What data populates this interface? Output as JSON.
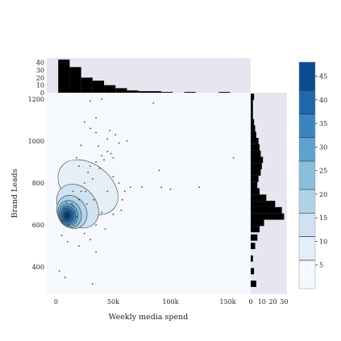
{
  "chart_data": {
    "type": "jointplot",
    "xlabel": "Weekly media spend",
    "ylabel": "Brand Leads",
    "x_ticks": [
      {
        "v": 0,
        "label": "0"
      },
      {
        "v": 50000,
        "label": "50k"
      },
      {
        "v": 100000,
        "label": "100k"
      },
      {
        "v": 150000,
        "label": "150k"
      }
    ],
    "y_ticks": [
      {
        "v": 400,
        "label": "400"
      },
      {
        "v": 600,
        "label": "600"
      },
      {
        "v": 800,
        "label": "800"
      },
      {
        "v": 1000,
        "label": "1000"
      },
      {
        "v": 1200,
        "label": "1200"
      }
    ],
    "xlim": [
      -8000,
      170000
    ],
    "ylim": [
      270,
      1230
    ],
    "scatter": [
      [
        8000,
        650
      ],
      [
        10000,
        680
      ],
      [
        12000,
        630
      ],
      [
        14000,
        700
      ],
      [
        16000,
        660
      ],
      [
        6000,
        620
      ],
      [
        18000,
        640
      ],
      [
        9000,
        710
      ],
      [
        11000,
        600
      ],
      [
        15000,
        690
      ],
      [
        13000,
        670
      ],
      [
        7000,
        680
      ],
      [
        20000,
        720
      ],
      [
        22000,
        760
      ],
      [
        25000,
        800
      ],
      [
        28000,
        850
      ],
      [
        30000,
        880
      ],
      [
        35000,
        900
      ],
      [
        40000,
        930
      ],
      [
        45000,
        950
      ],
      [
        32000,
        820
      ],
      [
        26000,
        760
      ],
      [
        38000,
        870
      ],
      [
        42000,
        910
      ],
      [
        48000,
        940
      ],
      [
        50000,
        920
      ],
      [
        30000,
        1060
      ],
      [
        35000,
        1040
      ],
      [
        22000,
        980
      ],
      [
        18000,
        920
      ],
      [
        25000,
        1090
      ],
      [
        35000,
        1110
      ],
      [
        40000,
        1200
      ],
      [
        30000,
        1190
      ],
      [
        85000,
        1180
      ],
      [
        50000,
        830
      ],
      [
        55000,
        800
      ],
      [
        65000,
        780
      ],
      [
        75000,
        780
      ],
      [
        60000,
        760
      ],
      [
        58000,
        720
      ],
      [
        57000,
        670
      ],
      [
        40000,
        660
      ],
      [
        35000,
        600
      ],
      [
        25000,
        560
      ],
      [
        30000,
        530
      ],
      [
        20000,
        500
      ],
      [
        35000,
        470
      ],
      [
        10000,
        520
      ],
      [
        5000,
        550
      ],
      [
        3000,
        380
      ],
      [
        8000,
        350
      ],
      [
        32000,
        320
      ],
      [
        92000,
        780
      ],
      [
        100000,
        770
      ],
      [
        125000,
        780
      ],
      [
        155000,
        920
      ],
      [
        90000,
        860
      ],
      [
        55000,
        990
      ],
      [
        62000,
        1000
      ],
      [
        45000,
        1010
      ],
      [
        37000,
        975
      ],
      [
        52000,
        1030
      ],
      [
        47000,
        1050
      ],
      [
        20000,
        880
      ],
      [
        15000,
        760
      ],
      [
        27000,
        700
      ],
      [
        33000,
        720
      ],
      [
        45000,
        760
      ],
      [
        50000,
        650
      ],
      [
        43000,
        580
      ]
    ],
    "kde_colorbar": {
      "min": 0,
      "max": 48,
      "levels": [
        0,
        6,
        11,
        16,
        21,
        27,
        32,
        37,
        42,
        48
      ],
      "ticks": [
        5,
        10,
        15,
        20,
        25,
        30,
        35,
        40,
        45
      ]
    },
    "x_hist": {
      "bin_edges": [
        -8000,
        2000,
        12000,
        22000,
        32000,
        42000,
        52000,
        62000,
        72000,
        82000,
        92000,
        102000,
        112000,
        122000,
        132000,
        142000,
        152000,
        162000
      ],
      "counts": [
        0,
        44,
        34,
        20,
        16,
        10,
        6,
        3,
        2,
        2,
        1,
        0,
        1,
        0,
        0,
        1,
        0
      ],
      "ticks": [
        0,
        10,
        20,
        30,
        40
      ],
      "max": 46
    },
    "y_hist": {
      "bin_centers": [
        320,
        380,
        440,
        500,
        540,
        580,
        610,
        640,
        670,
        700,
        730,
        760,
        790,
        820,
        850,
        880,
        910,
        940,
        970,
        1000,
        1030,
        1060,
        1090,
        1120,
        1150,
        1180,
        1210
      ],
      "counts": [
        5,
        3,
        2,
        4,
        6,
        8,
        12,
        30,
        28,
        22,
        14,
        8,
        6,
        7,
        9,
        10,
        11,
        9,
        8,
        7,
        5,
        4,
        3,
        2,
        2,
        2,
        3
      ],
      "ticks": [
        0,
        10,
        20,
        30
      ],
      "max": 30
    }
  }
}
